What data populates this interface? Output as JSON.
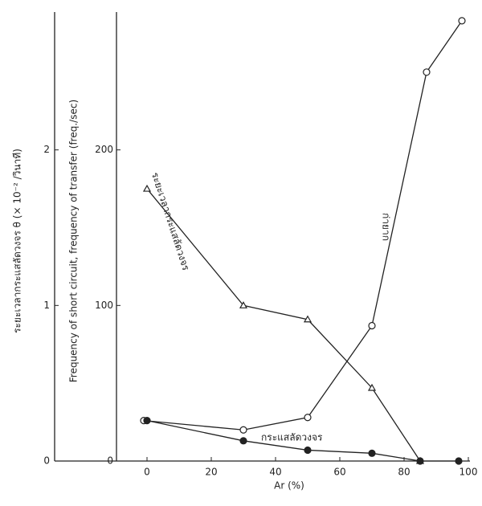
{
  "chart_data": {
    "type": "line",
    "x_label": "Ar (%)",
    "y_label": "Frequency of short circuit, frequency of transfer (freq./sec)",
    "y2_label": "ระยะเวลากระแสลัดวงจร θ (× 10⁻² /วินาที)",
    "xlim": [
      -9.5,
      100.5
    ],
    "xticks": [
      0,
      20,
      40,
      60,
      80,
      100
    ],
    "ylim": [
      0,
      285
    ],
    "yticks": [
      0,
      100,
      200
    ],
    "y2lim": [
      0,
      2.85
    ],
    "y2ticks": [
      0,
      1,
      2
    ],
    "series": [
      {
        "name": "ระยะเวลากระแสลัดวงจร",
        "color": "#222",
        "marker": "triangle",
        "axis": "y2",
        "x": [
          0,
          30,
          50,
          70,
          85
        ],
        "values": [
          1.75,
          1.0,
          0.91,
          0.47,
          0
        ]
      },
      {
        "name": "ก่ายาก",
        "color": "#222",
        "marker": "circle-open",
        "x": [
          -1,
          30,
          50,
          70,
          87,
          98
        ],
        "values": [
          26,
          20,
          28,
          87,
          250,
          283
        ]
      },
      {
        "name": "กระแสลัดวงจร",
        "color": "#222",
        "marker": "circle-filled",
        "x": [
          0,
          30,
          50,
          70,
          85,
          97
        ],
        "values": [
          26,
          13,
          7,
          5,
          0,
          0
        ]
      }
    ]
  }
}
